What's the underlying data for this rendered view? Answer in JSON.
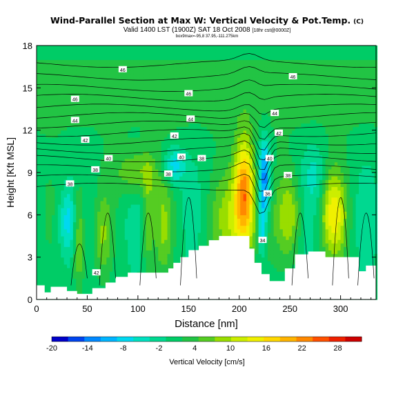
{
  "chart_data": {
    "type": "heatmap",
    "title": "Wind-Parallel Section at Max W: Vertical Velocity & Pot.Temp.",
    "title_mark": "(C)",
    "subtitle": "Valid 1400 LST (1900Z) SAT 18 Oct 2008",
    "subtitle_note": "[18hr cst@0000Z]",
    "subtitle2": "box9max=-95,8 37.95,-111.275km",
    "xlabel": "Distance [nm]",
    "ylabel": "Height [Kft MSL]",
    "xlim": [
      0,
      335
    ],
    "ylim": [
      0,
      18
    ],
    "x_ticks": [
      "0",
      "50",
      "100",
      "150",
      "200",
      "250",
      "300"
    ],
    "y_ticks": [
      "0",
      "3",
      "6",
      "9",
      "12",
      "15",
      "18"
    ],
    "colorbar": {
      "label": "Vertical Velocity [cm/s]",
      "ticks": [
        "-20",
        "-14",
        "-8",
        "-2",
        "4",
        "10",
        "16",
        "22",
        "28"
      ],
      "range": [
        -20,
        32
      ],
      "colors": [
        "#0000c8",
        "#0044ee",
        "#0088ff",
        "#00b4ff",
        "#00d8f0",
        "#00e0c0",
        "#00d890",
        "#00cc66",
        "#22c444",
        "#55cc22",
        "#99dd00",
        "#ccee00",
        "#f0f000",
        "#ffd800",
        "#ffb400",
        "#ff8800",
        "#ff5000",
        "#ee2000",
        "#cc0000"
      ]
    },
    "contour_labels": [
      {
        "text": "46",
        "x": 85,
        "y": 16.3
      },
      {
        "text": "46",
        "x": 253,
        "y": 15.8
      },
      {
        "text": "46",
        "x": 150,
        "y": 14.6
      },
      {
        "text": "46",
        "x": 38,
        "y": 14.2
      },
      {
        "text": "44",
        "x": 235,
        "y": 13.2
      },
      {
        "text": "44",
        "x": 152,
        "y": 12.8
      },
      {
        "text": "44",
        "x": 38,
        "y": 12.7
      },
      {
        "text": "42",
        "x": 239,
        "y": 11.8
      },
      {
        "text": "42",
        "x": 136,
        "y": 11.6
      },
      {
        "text": "42",
        "x": 48,
        "y": 11.3
      },
      {
        "text": "40",
        "x": 143,
        "y": 10.1
      },
      {
        "text": "40",
        "x": 71,
        "y": 10.0
      },
      {
        "text": "40",
        "x": 230,
        "y": 10.0
      },
      {
        "text": "38",
        "x": 163,
        "y": 10.0
      },
      {
        "text": "38",
        "x": 58,
        "y": 9.2
      },
      {
        "text": "38",
        "x": 130,
        "y": 8.9
      },
      {
        "text": "38",
        "x": 248,
        "y": 8.8
      },
      {
        "text": "38",
        "x": 33,
        "y": 8.2
      },
      {
        "text": "36",
        "x": 228,
        "y": 7.5
      },
      {
        "text": "34",
        "x": 223,
        "y": 4.2
      },
      {
        "text": "42",
        "x": 59,
        "y": 1.9
      }
    ]
  }
}
